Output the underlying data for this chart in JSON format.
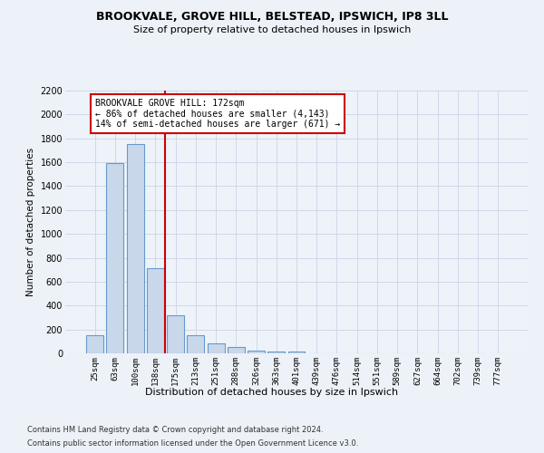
{
  "title_line1": "BROOKVALE, GROVE HILL, BELSTEAD, IPSWICH, IP8 3LL",
  "title_line2": "Size of property relative to detached houses in Ipswich",
  "xlabel": "Distribution of detached houses by size in Ipswich",
  "ylabel": "Number of detached properties",
  "categories": [
    "25sqm",
    "63sqm",
    "100sqm",
    "138sqm",
    "175sqm",
    "213sqm",
    "251sqm",
    "288sqm",
    "326sqm",
    "363sqm",
    "401sqm",
    "439sqm",
    "476sqm",
    "514sqm",
    "551sqm",
    "589sqm",
    "627sqm",
    "664sqm",
    "702sqm",
    "739sqm",
    "777sqm"
  ],
  "values": [
    150,
    1590,
    1750,
    710,
    315,
    155,
    85,
    50,
    25,
    15,
    15,
    0,
    0,
    0,
    0,
    0,
    0,
    0,
    0,
    0,
    0
  ],
  "bar_color": "#c8d8ea",
  "bar_edgecolor": "#6699cc",
  "vline_x": 3.5,
  "vline_color": "#cc0000",
  "annotation_title": "BROOKVALE GROVE HILL: 172sqm",
  "annotation_line1": "← 86% of detached houses are smaller (4,143)",
  "annotation_line2": "14% of semi-detached houses are larger (671) →",
  "annotation_box_color": "#cc0000",
  "ylim": [
    0,
    2200
  ],
  "yticks": [
    0,
    200,
    400,
    600,
    800,
    1000,
    1200,
    1400,
    1600,
    1800,
    2000,
    2200
  ],
  "footer_line1": "Contains HM Land Registry data © Crown copyright and database right 2024.",
  "footer_line2": "Contains public sector information licensed under the Open Government Licence v3.0.",
  "background_color": "#edf2f8",
  "plot_background": "#eef3fa",
  "grid_color": "#d0d8e8"
}
